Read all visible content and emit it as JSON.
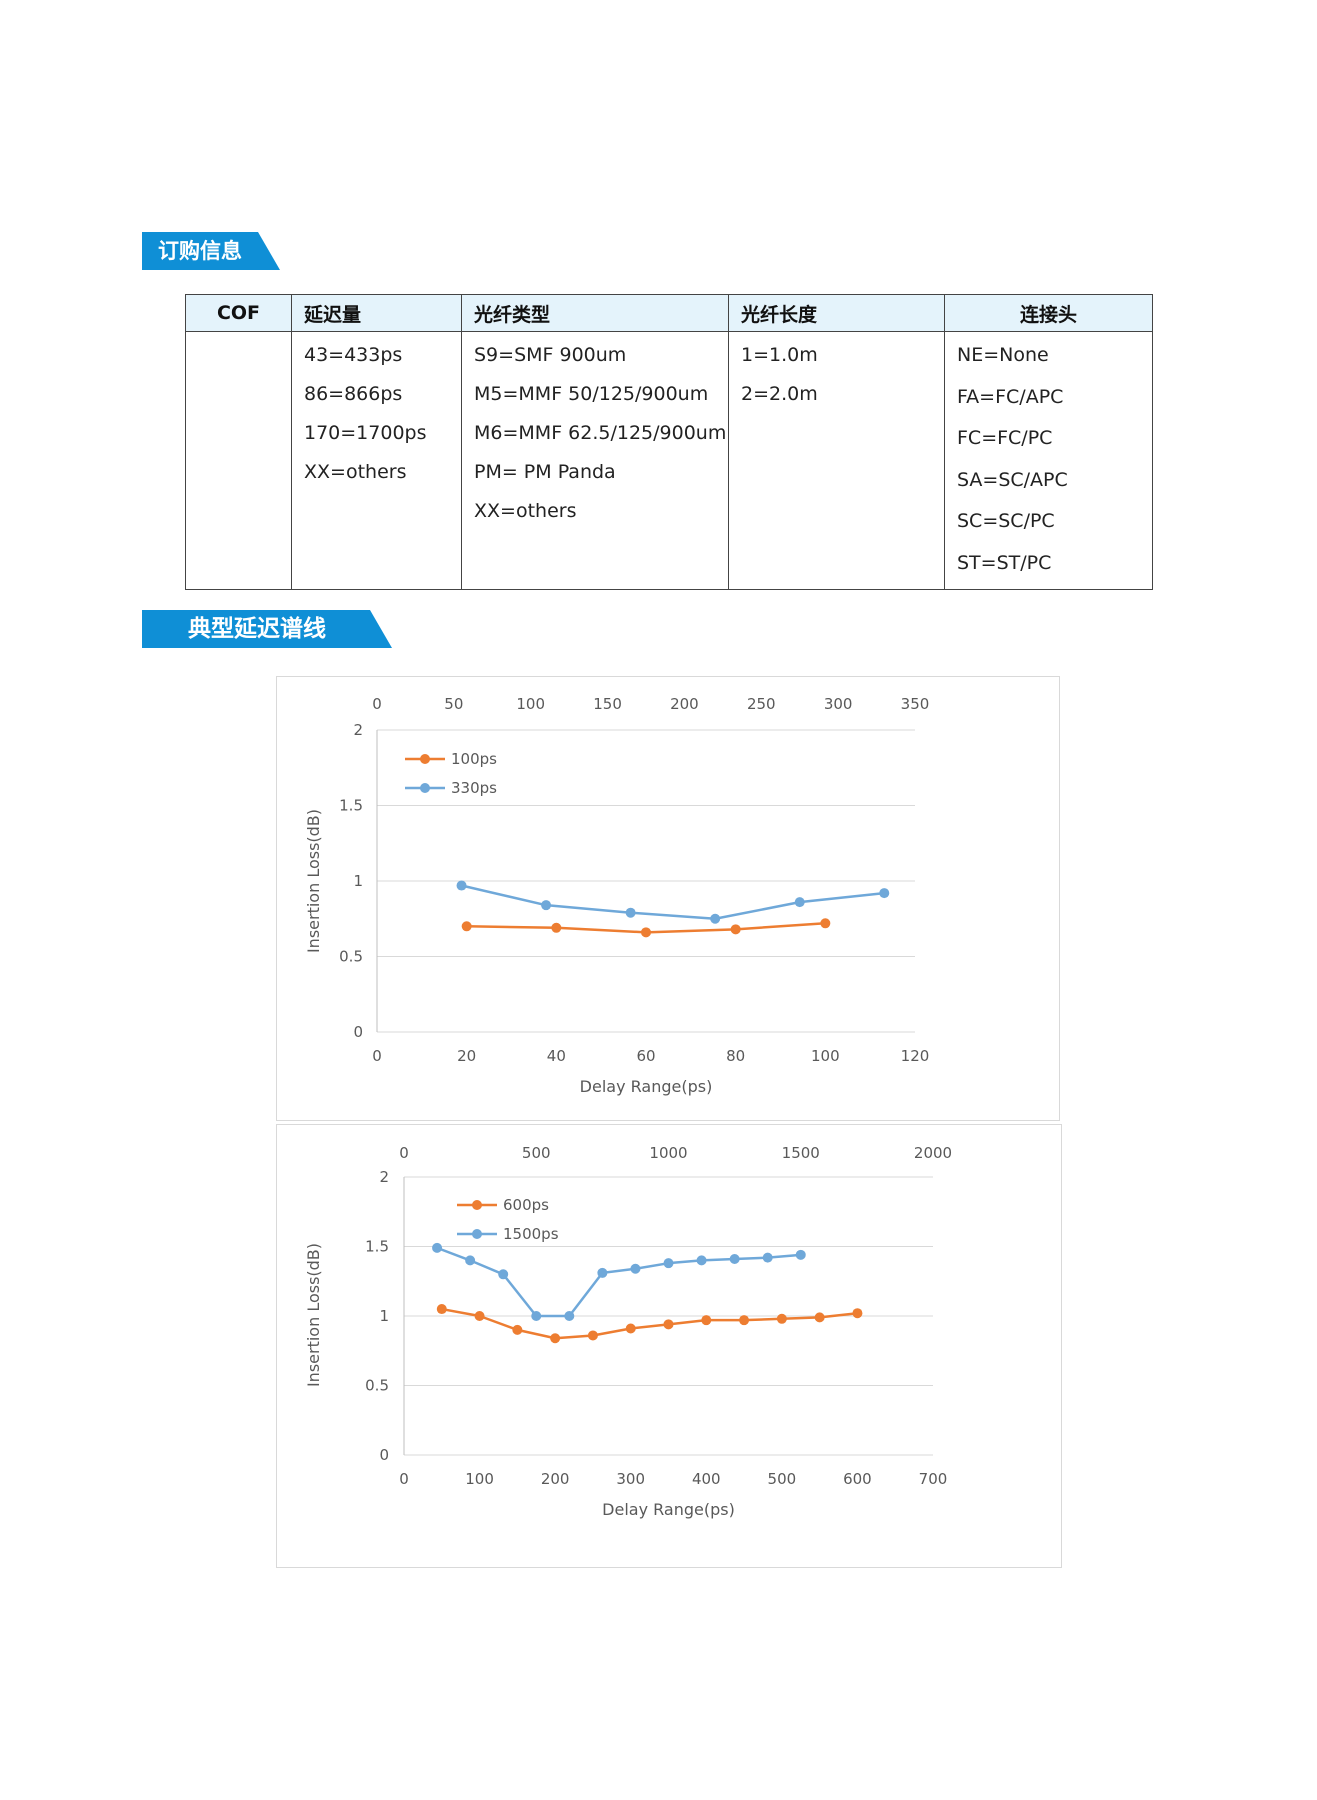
{
  "sections": {
    "ordering_title": "订购信息",
    "curve_title": "典型延迟谱线"
  },
  "order_table": {
    "headers": [
      "COF",
      "延迟量",
      "光纤类型",
      "光纤长度",
      "连接头"
    ],
    "delay": [
      "43=433ps",
      "86=866ps",
      "170=1700ps",
      "XX=others"
    ],
    "fiber_type": [
      "S9=SMF 900um",
      "M5=MMF 50/125/900um",
      "M6=MMF 62.5/125/900um",
      "PM= PM Panda",
      "XX=others"
    ],
    "fiber_length": [
      "1=1.0m",
      "2=2.0m"
    ],
    "connector": [
      "NE=None",
      "FA=FC/APC",
      "FC=FC/PC",
      "SA=SC/APC",
      "SC=SC/PC",
      "ST=ST/PC"
    ]
  },
  "colors": {
    "banner": "#0f8fd6",
    "header_bg": "#e4f3fb",
    "orange": "#ed7d31",
    "blue": "#6fa8d9",
    "grid": "#d9d9d9"
  },
  "chart_data": [
    {
      "type": "line",
      "title": "",
      "xlabel": "Delay Range(ps)",
      "ylabel": "Insertion Loss(dB)",
      "xlim": [
        0,
        120
      ],
      "x_ticks": [
        "0",
        "20",
        "40",
        "60",
        "80",
        "100",
        "120"
      ],
      "x2lim": [
        0,
        350
      ],
      "x2_ticks": [
        "0",
        "50",
        "100",
        "150",
        "200",
        "250",
        "300",
        "350"
      ],
      "ylim": [
        0,
        2
      ],
      "y_ticks": [
        "0",
        "0.5",
        "1",
        "1.5",
        "2"
      ],
      "legend_position": "top-left",
      "series": [
        {
          "name": "100ps",
          "color": "#ed7d31",
          "axis": "bottom",
          "x": [
            20,
            40,
            60,
            80,
            100
          ],
          "y": [
            0.7,
            0.69,
            0.66,
            0.68,
            0.72
          ]
        },
        {
          "name": "330ps",
          "color": "#6fa8d9",
          "axis": "top",
          "x": [
            55,
            110,
            165,
            220,
            275,
            330
          ],
          "y": [
            0.97,
            0.84,
            0.79,
            0.75,
            0.86,
            0.92
          ]
        }
      ]
    },
    {
      "type": "line",
      "title": "",
      "xlabel": "Delay Range(ps)",
      "ylabel": "Insertion Loss(dB)",
      "xlim": [
        0,
        700
      ],
      "x_ticks": [
        "0",
        "100",
        "200",
        "300",
        "400",
        "500",
        "600",
        "700"
      ],
      "x2lim": [
        0,
        2000
      ],
      "x2_ticks": [
        "0",
        "500",
        "1000",
        "1500",
        "2000"
      ],
      "ylim": [
        0,
        2
      ],
      "y_ticks": [
        "0",
        "0.5",
        "1",
        "1.5",
        "2"
      ],
      "legend_position": "top-left",
      "series": [
        {
          "name": "600ps",
          "color": "#ed7d31",
          "axis": "bottom",
          "x": [
            50,
            100,
            150,
            200,
            250,
            300,
            350,
            400,
            450,
            500,
            550,
            600
          ],
          "y": [
            1.05,
            1.0,
            0.9,
            0.84,
            0.86,
            0.91,
            0.94,
            0.97,
            0.97,
            0.98,
            0.99,
            1.02
          ]
        },
        {
          "name": "1500ps",
          "color": "#6fa8d9",
          "axis": "top",
          "x": [
            125,
            250,
            375,
            500,
            625,
            750,
            875,
            1000,
            1125,
            1250,
            1375,
            1500
          ],
          "y": [
            1.49,
            1.4,
            1.3,
            1.0,
            1.0,
            1.31,
            1.34,
            1.38,
            1.4,
            1.41,
            1.42,
            1.44
          ]
        }
      ]
    }
  ]
}
